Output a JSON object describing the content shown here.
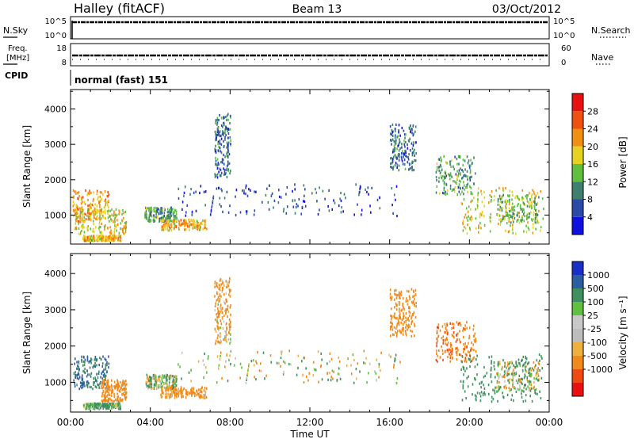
{
  "header": {
    "station": "Halley (fitACF)",
    "beam": "Beam 13",
    "date": "03/Oct/2012"
  },
  "status_panels": {
    "nsky_label": "N.Sky",
    "nsearch_label": "N.Search",
    "nsky_ticks": [
      "10^5",
      "10^0"
    ],
    "nsearch_ticks": [
      "10^5",
      "10^0"
    ],
    "freq_label_1": "Freq.",
    "freq_label_2": "[MHz]",
    "freq_ticks": [
      "18",
      "8"
    ],
    "nave_label": "Nave",
    "nave_ticks": [
      "60",
      "0"
    ],
    "cpid_label": "CPID",
    "cpid_text": "normal (fast) 151"
  },
  "colors": {
    "power_scale": [
      "#1010e0",
      "#2a4aa8",
      "#3f7f6f",
      "#5fbf3f",
      "#e6d020",
      "#f09010",
      "#f05010",
      "#e81010"
    ],
    "velocity_scale": [
      "#e81010",
      "#f04a10",
      "#f08a18",
      "#f0b040",
      "#bdbdbd",
      "#c8c8c8",
      "#60c040",
      "#3f8f5f",
      "#2c5fa0",
      "#1a2fc8"
    ]
  },
  "chart_data": [
    {
      "type": "heatmap",
      "name": "power",
      "ylabel": "Slant Range [km]",
      "xlabel": "Time UT",
      "x_ticks": [
        "00:00",
        "04:00",
        "08:00",
        "12:00",
        "16:00",
        "20:00",
        "00:00"
      ],
      "xlim": [
        0,
        24
      ],
      "ylim": [
        180,
        4550
      ],
      "y_ticks": [
        1000,
        2000,
        3000,
        4000
      ],
      "colorbar_label": "Power [dB]",
      "colorbar_ticks": [
        "4",
        "8",
        "12",
        "16",
        "20",
        "24",
        "28"
      ],
      "clim": [
        0,
        30
      ],
      "patches": [
        {
          "t0": 0.1,
          "t1": 1.9,
          "r0": 850,
          "r1": 1750,
          "v": 22
        },
        {
          "t0": 0.2,
          "t1": 2.8,
          "r0": 500,
          "r1": 1200,
          "v": 18
        },
        {
          "t0": 0.6,
          "t1": 2.5,
          "r0": 300,
          "r1": 450,
          "v": 20
        },
        {
          "t0": 3.7,
          "t1": 5.3,
          "r0": 850,
          "r1": 1250,
          "v": 12
        },
        {
          "t0": 4.5,
          "t1": 6.8,
          "r0": 600,
          "r1": 900,
          "v": 20
        },
        {
          "t0": 5.3,
          "t1": 16.5,
          "r0": 1000,
          "r1": 1900,
          "v": 6
        },
        {
          "t0": 7.2,
          "t1": 8.0,
          "r0": 2100,
          "r1": 3900,
          "v": 8
        },
        {
          "t0": 16.0,
          "t1": 17.3,
          "r0": 2300,
          "r1": 3600,
          "v": 8
        },
        {
          "t0": 18.3,
          "t1": 20.3,
          "r0": 1600,
          "r1": 2700,
          "v": 12
        },
        {
          "t0": 19.5,
          "t1": 23.7,
          "r0": 500,
          "r1": 1800,
          "v": 18
        },
        {
          "t0": 21.3,
          "t1": 23.5,
          "r0": 800,
          "r1": 1600,
          "v": 14
        }
      ]
    },
    {
      "type": "heatmap",
      "name": "velocity",
      "ylabel": "Slant Range [km]",
      "xlabel": "Time UT",
      "x_ticks": [
        "00:00",
        "04:00",
        "08:00",
        "12:00",
        "16:00",
        "20:00",
        "00:00"
      ],
      "xlim": [
        0,
        24
      ],
      "ylim": [
        180,
        4550
      ],
      "y_ticks": [
        1000,
        2000,
        3000,
        4000
      ],
      "colorbar_label": "Velocity [m s⁻¹]",
      "colorbar_ticks": [
        "1000",
        "500",
        "100",
        "25",
        "-25",
        "-100",
        "-500",
        "-1000"
      ],
      "patches": [
        {
          "t0": 0.1,
          "t1": 1.9,
          "r0": 850,
          "r1": 1750,
          "v": 500
        },
        {
          "t0": 1.5,
          "t1": 2.8,
          "r0": 500,
          "r1": 1100,
          "v": -300
        },
        {
          "t0": 0.6,
          "t1": 2.5,
          "r0": 300,
          "r1": 450,
          "v": 150
        },
        {
          "t0": 3.7,
          "t1": 5.3,
          "r0": 850,
          "r1": 1250,
          "v": 60
        },
        {
          "t0": 4.5,
          "t1": 6.8,
          "r0": 600,
          "r1": 900,
          "v": -200
        },
        {
          "t0": 5.3,
          "t1": 16.5,
          "r0": 1000,
          "r1": 1900,
          "v": 0
        },
        {
          "t0": 7.2,
          "t1": 8.0,
          "r0": 2100,
          "r1": 3900,
          "v": -150
        },
        {
          "t0": 16.0,
          "t1": 17.3,
          "r0": 2300,
          "r1": 3600,
          "v": -300
        },
        {
          "t0": 18.3,
          "t1": 20.3,
          "r0": 1600,
          "r1": 2700,
          "v": -400
        },
        {
          "t0": 19.5,
          "t1": 23.7,
          "r0": 500,
          "r1": 1800,
          "v": 300
        },
        {
          "t0": 21.3,
          "t1": 23.5,
          "r0": 800,
          "r1": 1600,
          "v": 0
        }
      ]
    }
  ]
}
